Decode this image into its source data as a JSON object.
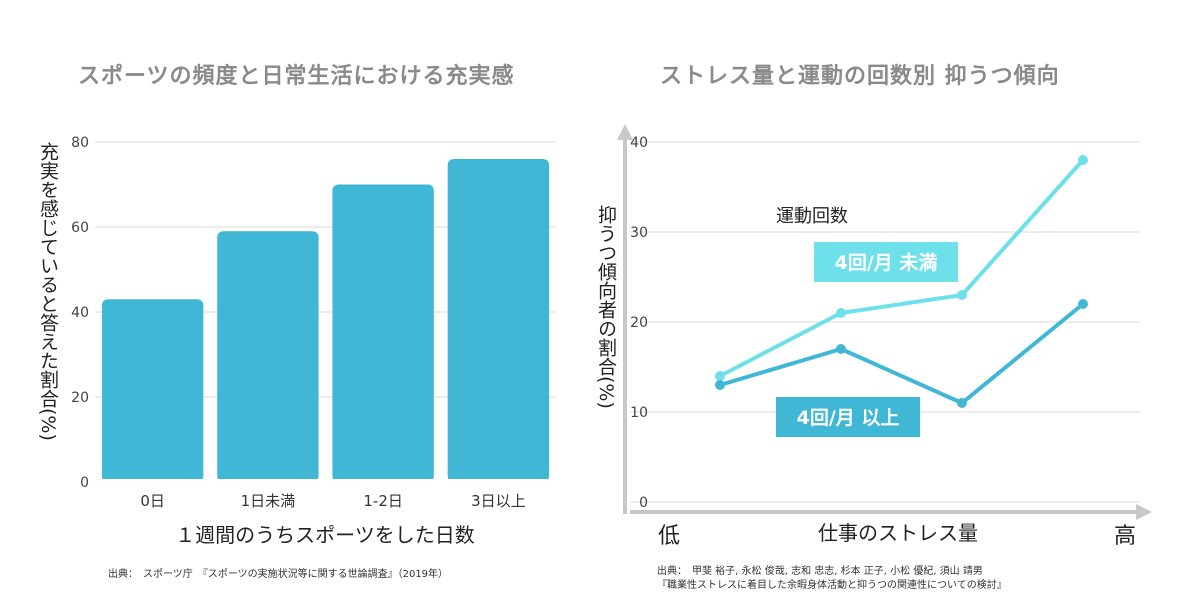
{
  "chart_data": [
    {
      "type": "bar",
      "title": "スポーツの頻度と日常生活における充実感",
      "categories": [
        "0日",
        "1日未満",
        "1-2日",
        "3日以上"
      ],
      "values": [
        43,
        59,
        70,
        76
      ],
      "xlabel": "１週間のうちスポーツをした日数",
      "ylabel": "充実を感じていると答えた割合(%)",
      "ylim": [
        0,
        80
      ],
      "yticks": [
        "0",
        "20",
        "40",
        "60",
        "80"
      ],
      "grid": true,
      "bar_color": "#41b7d6",
      "source": "出典：　スポーツ庁　『スポーツの実施状況等に関する世論調査』（2019年）"
    },
    {
      "type": "line",
      "title": "ストレス量と運動の回数別 抑うつ傾向",
      "xlabel": "仕事のストレス量",
      "x_low_label": "低",
      "x_high_label": "高",
      "ylabel": "抑うつ傾向者の割合(%)",
      "ylim": [
        0,
        40
      ],
      "yticks": [
        "0",
        "10",
        "20",
        "30",
        "40"
      ],
      "grid": true,
      "legend_title": "運動回数",
      "series": [
        {
          "name": "4回/月 未満",
          "values": [
            14,
            21,
            23,
            38
          ],
          "color": "#6ee0ea"
        },
        {
          "name": "4回/月 以上",
          "values": [
            13,
            17,
            11,
            22
          ],
          "color": "#41b7d6"
        }
      ],
      "source_line1": "出典：　甲斐 裕子, 永松 俊哉, 志和 忠志, 杉本 正子, 小松 優紀, 須山 靖男",
      "source_line2": "『職業性ストレスに着目した余暇身体活動と抑うつの関連性についての検討』"
    }
  ]
}
